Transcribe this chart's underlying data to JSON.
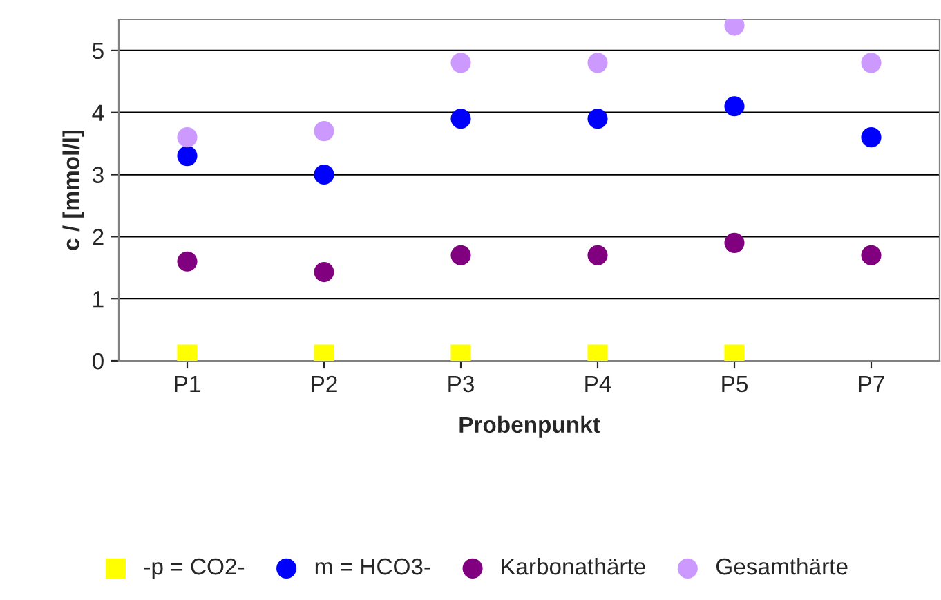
{
  "chart_data": {
    "type": "scatter",
    "xlabel": "Probenpunkt",
    "ylabel": "c / [mmol/l]",
    "categories": [
      "P1",
      "P2",
      "P3",
      "P4",
      "P5",
      "P7"
    ],
    "series": [
      {
        "name": "-p = CO2-",
        "color": "#ffff00",
        "marker": "square",
        "values": [
          0.1,
          0.1,
          0.1,
          0.1,
          0.1,
          null
        ]
      },
      {
        "name": "m = HCO3-",
        "color": "#0000ff",
        "marker": "circle",
        "values": [
          3.3,
          3.0,
          3.9,
          3.9,
          4.1,
          3.6
        ]
      },
      {
        "name": "Karbonathärte",
        "color": "#800080",
        "marker": "circle",
        "values": [
          1.6,
          1.43,
          1.7,
          1.7,
          1.9,
          1.7
        ]
      },
      {
        "name": "Gesamthärte",
        "color": "#cc99ff",
        "marker": "circle",
        "values": [
          3.6,
          3.7,
          4.8,
          4.8,
          5.4,
          4.8
        ]
      }
    ],
    "ylim": [
      0,
      5.5
    ],
    "yticks": [
      0,
      1,
      2,
      3,
      4,
      5
    ],
    "grid": "y",
    "legend": "bottom"
  }
}
